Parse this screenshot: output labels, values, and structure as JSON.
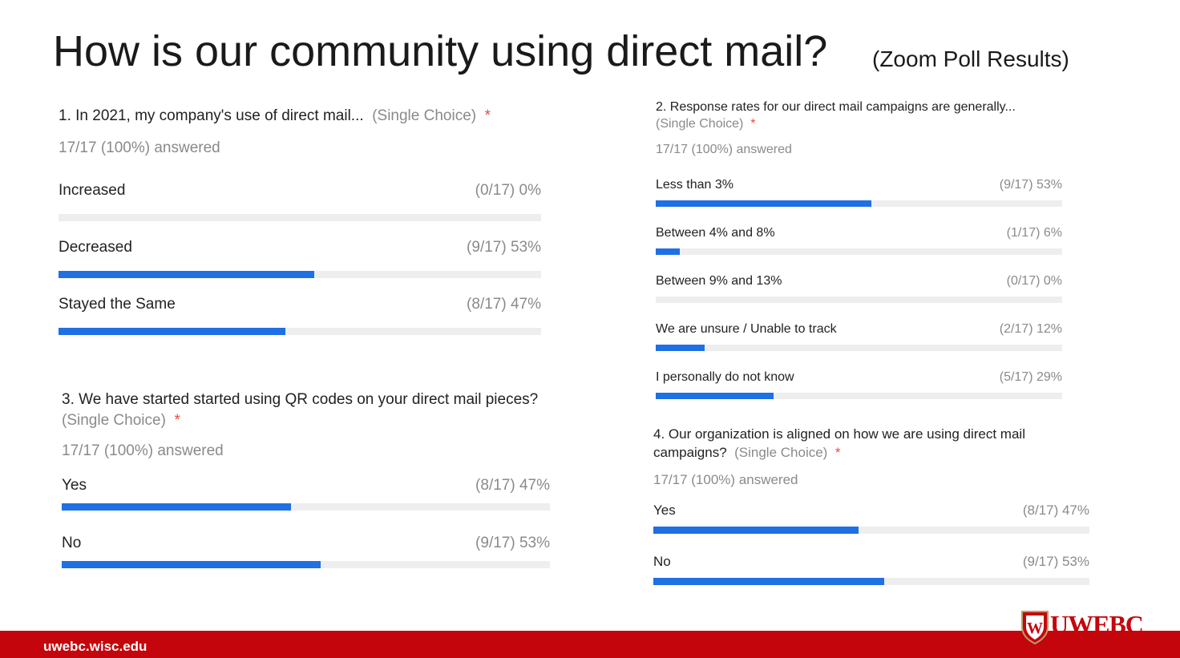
{
  "slide": {
    "title": "How is our community using direct mail?",
    "subtitle": "(Zoom Poll Results)"
  },
  "questions": [
    {
      "id": "q1",
      "text": "1. In 2021, my company's use of direct mail...",
      "type": "(Single Choice)",
      "required": "*",
      "answered": "17/17 (100%) answered",
      "options": [
        {
          "label": "Increased",
          "stat": "(0/17) 0%",
          "fraction": 0.0
        },
        {
          "label": "Decreased",
          "stat": "(9/17) 53%",
          "fraction": 0.53
        },
        {
          "label": "Stayed the Same",
          "stat": "(8/17) 47%",
          "fraction": 0.47
        }
      ]
    },
    {
      "id": "q2",
      "text": "2. Response rates for our direct mail campaigns are generally...",
      "type": "(Single Choice)",
      "required": "*",
      "answered": "17/17 (100%) answered",
      "options": [
        {
          "label": "Less than 3%",
          "stat": "(9/17) 53%",
          "fraction": 0.53
        },
        {
          "label": "Between 4% and 8%",
          "stat": "(1/17) 6%",
          "fraction": 0.06
        },
        {
          "label": "Between 9% and 13%",
          "stat": "(0/17) 0%",
          "fraction": 0.0
        },
        {
          "label": "We are unsure / Unable to track",
          "stat": "(2/17) 12%",
          "fraction": 0.12
        },
        {
          "label": "I personally do not know",
          "stat": "(5/17) 29%",
          "fraction": 0.29
        }
      ]
    },
    {
      "id": "q3",
      "text": "3. We have started started using QR codes on your direct mail pieces?",
      "type": "(Single Choice)",
      "required": "*",
      "answered": "17/17 (100%) answered",
      "options": [
        {
          "label": "Yes",
          "stat": "(8/17) 47%",
          "fraction": 0.47
        },
        {
          "label": "No",
          "stat": "(9/17) 53%",
          "fraction": 0.53
        }
      ]
    },
    {
      "id": "q4",
      "text": "4. Our organization is aligned on how we are using direct mail campaigns?",
      "type": "(Single Choice)",
      "required": "*",
      "answered": "17/17 (100%) answered",
      "options": [
        {
          "label": "Yes",
          "stat": "(8/17) 47%",
          "fraction": 0.47
        },
        {
          "label": "No",
          "stat": "(9/17) 53%",
          "fraction": 0.53
        }
      ]
    }
  ],
  "footer": {
    "url": "uwebc.wisc.edu",
    "logo_text": "UWEBC",
    "accent_color": "#c5050c",
    "bar_color": "#1f6fe5"
  }
}
